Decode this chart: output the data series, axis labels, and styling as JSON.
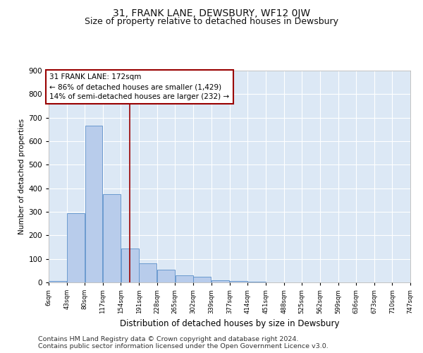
{
  "title": "31, FRANK LANE, DEWSBURY, WF12 0JW",
  "subtitle": "Size of property relative to detached houses in Dewsbury",
  "xlabel": "Distribution of detached houses by size in Dewsbury",
  "ylabel": "Number of detached properties",
  "bin_labels": [
    "6sqm",
    "43sqm",
    "80sqm",
    "117sqm",
    "154sqm",
    "191sqm",
    "228sqm",
    "265sqm",
    "302sqm",
    "339sqm",
    "377sqm",
    "414sqm",
    "451sqm",
    "488sqm",
    "525sqm",
    "562sqm",
    "599sqm",
    "636sqm",
    "673sqm",
    "710sqm",
    "747sqm"
  ],
  "bin_edges": [
    6,
    43,
    80,
    117,
    154,
    191,
    228,
    265,
    302,
    339,
    377,
    414,
    451,
    488,
    525,
    562,
    599,
    636,
    673,
    710,
    747
  ],
  "bar_values": [
    5,
    295,
    665,
    375,
    145,
    80,
    55,
    30,
    25,
    10,
    5,
    2,
    0,
    0,
    0,
    0,
    0,
    0,
    0,
    0
  ],
  "bar_color": "#b8cceb",
  "bar_edge_color": "#5b8fc9",
  "vline_x": 172,
  "vline_color": "#990000",
  "annotation_text": "31 FRANK LANE: 172sqm\n← 86% of detached houses are smaller (1,429)\n14% of semi-detached houses are larger (232) →",
  "annotation_box_facecolor": "#ffffff",
  "annotation_box_edgecolor": "#990000",
  "ylim": [
    0,
    900
  ],
  "yticks": [
    0,
    100,
    200,
    300,
    400,
    500,
    600,
    700,
    800,
    900
  ],
  "footer_line1": "Contains HM Land Registry data © Crown copyright and database right 2024.",
  "footer_line2": "Contains public sector information licensed under the Open Government Licence v3.0.",
  "plot_bg_color": "#dce8f5",
  "fig_bg_color": "#ffffff",
  "grid_color": "#ffffff",
  "title_fontsize": 10,
  "subtitle_fontsize": 9,
  "annotation_fontsize": 7.5,
  "footer_fontsize": 6.8,
  "ylabel_fontsize": 7.5,
  "xlabel_fontsize": 8.5
}
